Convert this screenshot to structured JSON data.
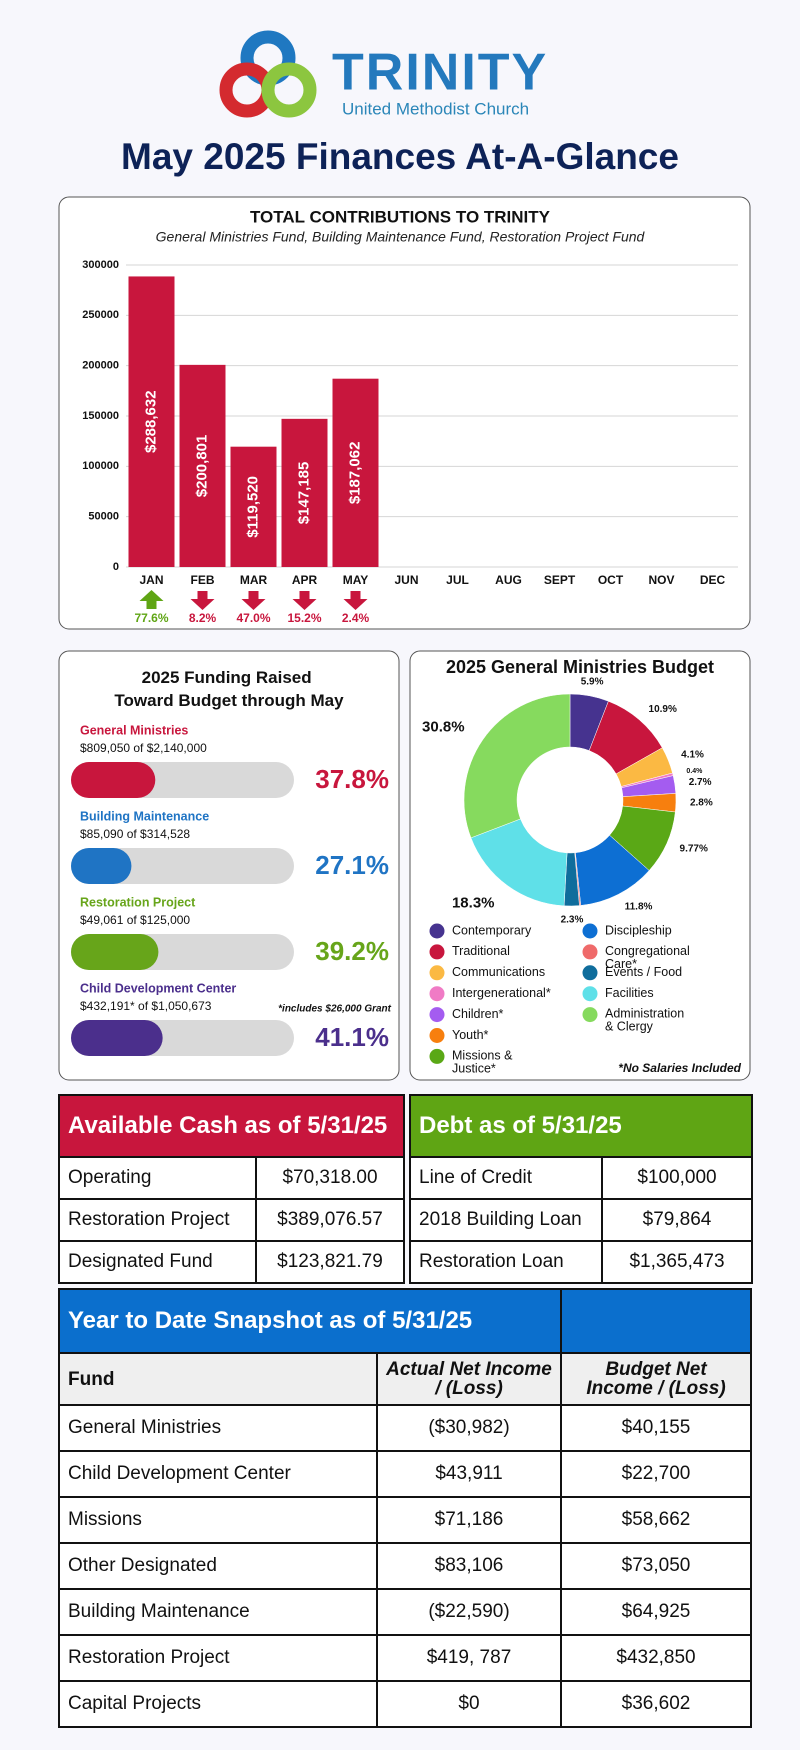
{
  "header": {
    "logo_name": "TRINITY",
    "logo_subtitle": "United Methodist Church",
    "title": "May 2025 Finances At-A-Glance"
  },
  "chart_data": [
    {
      "type": "bar",
      "title": "TOTAL CONTRIBUTIONS TO TRINITY",
      "subtitle": "General Ministries Fund, Building Maintenance Fund, Restoration Project Fund",
      "categories": [
        "JAN",
        "FEB",
        "MAR",
        "APR",
        "MAY",
        "JUN",
        "JUL",
        "AUG",
        "SEPT",
        "OCT",
        "NOV",
        "DEC"
      ],
      "values": [
        288632,
        200801,
        119520,
        147185,
        187062,
        null,
        null,
        null,
        null,
        null,
        null,
        null
      ],
      "value_labels": [
        "$288,632",
        "$200,801",
        "$119,520",
        "$147,185",
        "$187,062",
        null,
        null,
        null,
        null,
        null,
        null,
        null
      ],
      "change_values": [
        77.6,
        -8.2,
        -47.0,
        -15.2,
        -2.4,
        null,
        null,
        null,
        null,
        null,
        null,
        null
      ],
      "change_labels": [
        "77.6%",
        "8.2%",
        "47.0%",
        "15.2%",
        "2.4%",
        null,
        null,
        null,
        null,
        null,
        null,
        null
      ],
      "color": "#c8163d",
      "increase_color": "#5fa514",
      "decrease_color": "#c8163d",
      "ylim": [
        0,
        300000
      ],
      "yticks": [
        0,
        50000,
        100000,
        150000,
        200000,
        250000,
        300000
      ],
      "grid": true
    },
    {
      "type": "donut",
      "title": "2025 General Ministries Budget",
      "categories": [
        "Contemporary",
        "Traditional",
        "Communications",
        "Intergenerational*",
        "Children*",
        "Youth*",
        "Missions & Justice*",
        "Discipleship",
        "Congregational Care*",
        "Events / Food",
        "Facilities",
        "Administration & Clergy"
      ],
      "values": [
        5.9,
        10.9,
        4.1,
        0.4,
        2.7,
        2.8,
        9.77,
        11.8,
        0.2,
        2.3,
        18.3,
        30.8
      ],
      "value_labels": [
        "5.9%",
        "10.9%",
        "4.1%",
        "0.4%",
        "2.7%",
        "2.8%",
        "9.77%",
        "11.8%",
        null,
        "2.3%",
        "18.3%",
        "30.8%"
      ],
      "colors": [
        "#46338f",
        "#c8163d",
        "#fbb943",
        "#f07bc5",
        "#a45cf0",
        "#f77f0e",
        "#5aa816",
        "#0d6fd3",
        "#ef6a6a",
        "#0f6d9c",
        "#5fe0e8",
        "#86da5e"
      ],
      "note": "*No Salaries Included"
    },
    {
      "type": "progress",
      "title": "2025 Funding Raised Toward Budget through May",
      "categories": [
        "General Ministries",
        "Building Maintenance",
        "Restoration Project",
        "Child Development Center"
      ],
      "details": [
        "$809,050 of $2,140,000",
        "$85,090 of $314,528",
        "$49,061 of $125,000",
        "$432,191* of $1,050,673"
      ],
      "values": [
        37.8,
        27.1,
        39.2,
        41.1
      ],
      "value_labels": [
        "37.8%",
        "27.1%",
        "39.2%",
        "41.1%"
      ],
      "colors": [
        "#c8163d",
        "#1f74c4",
        "#67a51a",
        "#4b2f8c"
      ],
      "xlim": [
        0,
        100
      ],
      "note": "*includes $26,000 Grant"
    }
  ],
  "cash_table": {
    "title": "Available Cash as of 5/31/25",
    "rows": [
      [
        "Operating",
        "$70,318.00"
      ],
      [
        "Restoration Project",
        "$389,076.57"
      ],
      [
        "Designated Fund",
        "$123,821.79"
      ]
    ]
  },
  "debt_table": {
    "title": "Debt as of 5/31/25",
    "rows": [
      [
        "Line of Credit",
        "$100,000"
      ],
      [
        "2018 Building Loan",
        "$79,864"
      ],
      [
        "Restoration Loan",
        "$1,365,473"
      ]
    ]
  },
  "ytd_table": {
    "title": "Year to Date Snapshot as of 5/31/25",
    "columns": [
      "Fund",
      "Actual Net Income / (Loss)",
      "Budget Net Income / (Loss)"
    ],
    "rows": [
      [
        "General Ministries",
        "($30,982)",
        "$40,155"
      ],
      [
        "Child Development Center",
        "$43,911",
        "$22,700"
      ],
      [
        "Missions",
        "$71,186",
        "$58,662"
      ],
      [
        "Other Designated",
        "$83,106",
        "$73,050"
      ],
      [
        "Building Maintenance",
        "($22,590)",
        "$64,925"
      ],
      [
        "Restoration Project",
        "$419, 787",
        "$432,850"
      ],
      [
        "Capital Projects",
        "$0",
        "$36,602"
      ]
    ]
  }
}
